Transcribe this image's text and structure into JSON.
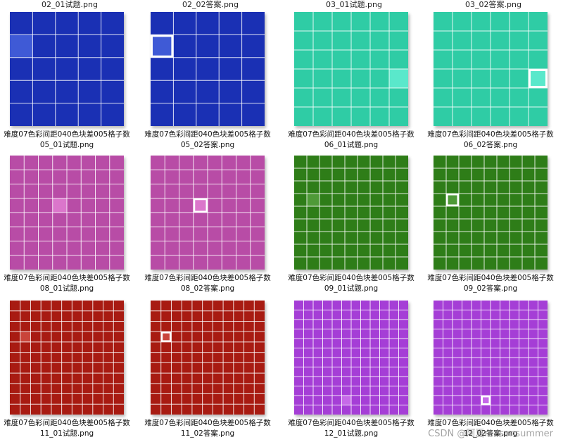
{
  "top_labels": [
    "02_01试题.png",
    "02_02答案.png",
    "03_01试题.png",
    "03_02答案.png"
  ],
  "items": [
    {
      "line1": "难度07色彩间距040色块差005格子数",
      "line2": "05_01试题.png",
      "grid": 5,
      "color": "#1a30b4",
      "cell": [
        0,
        1
      ],
      "cellColor": "#3f5ad6",
      "answer": false
    },
    {
      "line1": "难度07色彩间距040色块差005格子数",
      "line2": "05_02答案.png",
      "grid": 5,
      "color": "#1a30b4",
      "cell": [
        0,
        1
      ],
      "cellColor": "#3f5ad6",
      "answer": true
    },
    {
      "line1": "难度07色彩间距040色块差005格子数",
      "line2": "06_01试题.png",
      "grid": 6,
      "color": "#2fcca5",
      "cell": [
        5,
        3
      ],
      "cellColor": "#5ae8cb",
      "answer": false
    },
    {
      "line1": "难度07色彩间距040色块差005格子数",
      "line2": "06_02答案.png",
      "grid": 6,
      "color": "#2fcca5",
      "cell": [
        5,
        3
      ],
      "cellColor": "#5ae8cb",
      "answer": true
    },
    {
      "line1": "难度07色彩间距040色块差005格子数",
      "line2": "08_01试题.png",
      "grid": 8,
      "color": "#b84ca6",
      "cell": [
        3,
        3
      ],
      "cellColor": "#db76cb",
      "answer": false
    },
    {
      "line1": "难度07色彩间距040色块差005格子数",
      "line2": "08_02答案.png",
      "grid": 8,
      "color": "#b84ca6",
      "cell": [
        3,
        3
      ],
      "cellColor": "#db76cb",
      "answer": true
    },
    {
      "line1": "难度07色彩间距040色块差005格子数",
      "line2": "09_01试题.png",
      "grid": 9,
      "color": "#2e7d18",
      "cell": [
        1,
        3
      ],
      "cellColor": "#4f9a38",
      "answer": false
    },
    {
      "line1": "难度07色彩间距040色块差005格子数",
      "line2": "09_02答案.png",
      "grid": 9,
      "color": "#2e7d18",
      "cell": [
        1,
        3
      ],
      "cellColor": "#4f9a38",
      "answer": true
    },
    {
      "line1": "难度07色彩间距040色块差005格子数",
      "line2": "11_01试题.png",
      "grid": 11,
      "color": "#a81b12",
      "cell": [
        1,
        3
      ],
      "cellColor": "#c9443a",
      "answer": false
    },
    {
      "line1": "难度07色彩间距040色块差005格子数",
      "line2": "11_02答案.png",
      "grid": 11,
      "color": "#a81b12",
      "cell": [
        1,
        3
      ],
      "cellColor": "#c9443a",
      "answer": true
    },
    {
      "line1": "难度07色彩间距040色块差005格子数",
      "line2": "12_01试题.png",
      "grid": 12,
      "color": "#a53ed6",
      "cell": [
        5,
        10
      ],
      "cellColor": "#c66ae8",
      "answer": false
    },
    {
      "line1": "难度07色彩间距040色块差005格子数",
      "line2": "12_02答案.png",
      "grid": 12,
      "color": "#a53ed6",
      "cell": [
        5,
        10
      ],
      "cellColor": "#c66ae8",
      "answer": true
    }
  ],
  "watermark": "CSDN @阿夏reasonsummer"
}
